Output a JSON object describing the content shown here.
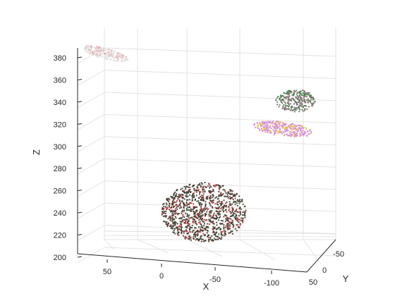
{
  "chart_data": {
    "type": "scatter",
    "title": "",
    "xlabel": "X",
    "ylabel": "Y",
    "zlabel": "Z",
    "grid": true,
    "view": "3d",
    "x_ticks": [
      "50",
      "0",
      "-50",
      "-100"
    ],
    "y_ticks": [
      "-50",
      "0",
      "50"
    ],
    "z_ticks": [
      "200",
      "220",
      "240",
      "260",
      "280",
      "300",
      "320",
      "340",
      "360",
      "380"
    ],
    "zlim": [
      200,
      388
    ],
    "series": [
      {
        "color": "#e0e0e0",
        "accent": "#f0a0a0",
        "z": 385
      },
      {
        "color": "#7a6a6a",
        "accent": "#2e8b3a",
        "z": 345
      },
      {
        "color": "#d98cd6",
        "accent": "#e8c820",
        "z": 320
      },
      {
        "color": "#3a3a2a",
        "accent": "#c8303a",
        "z": 255
      }
    ]
  }
}
